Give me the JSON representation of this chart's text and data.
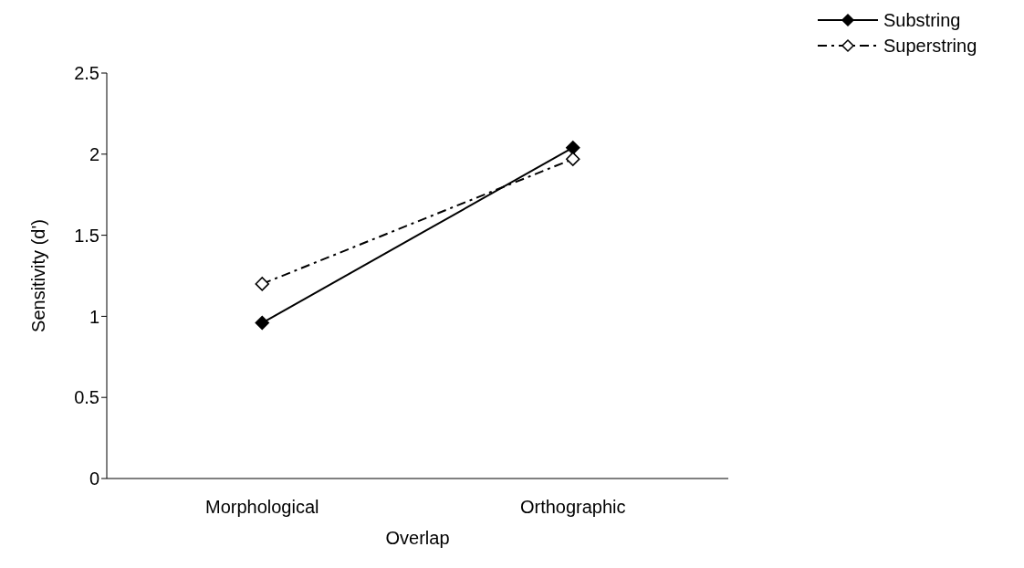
{
  "chart_data": {
    "type": "line",
    "xlabel": "Overlap",
    "ylabel": "Sensitivity (d')",
    "categories": [
      "Morphological",
      "Orthographic"
    ],
    "series": [
      {
        "name": "Substring",
        "color": "#000000",
        "values": [
          0.96,
          2.04
        ],
        "line_style": "solid"
      },
      {
        "name": "Superstring",
        "color": "#000000",
        "values": [
          1.2,
          1.97
        ],
        "line_style": "dashed"
      }
    ],
    "ylim": [
      0,
      2.5
    ],
    "yticks": [
      0,
      0.5,
      1,
      1.5,
      2,
      2.5
    ],
    "grid": false,
    "legend": "top right",
    "marker": "diamond"
  }
}
